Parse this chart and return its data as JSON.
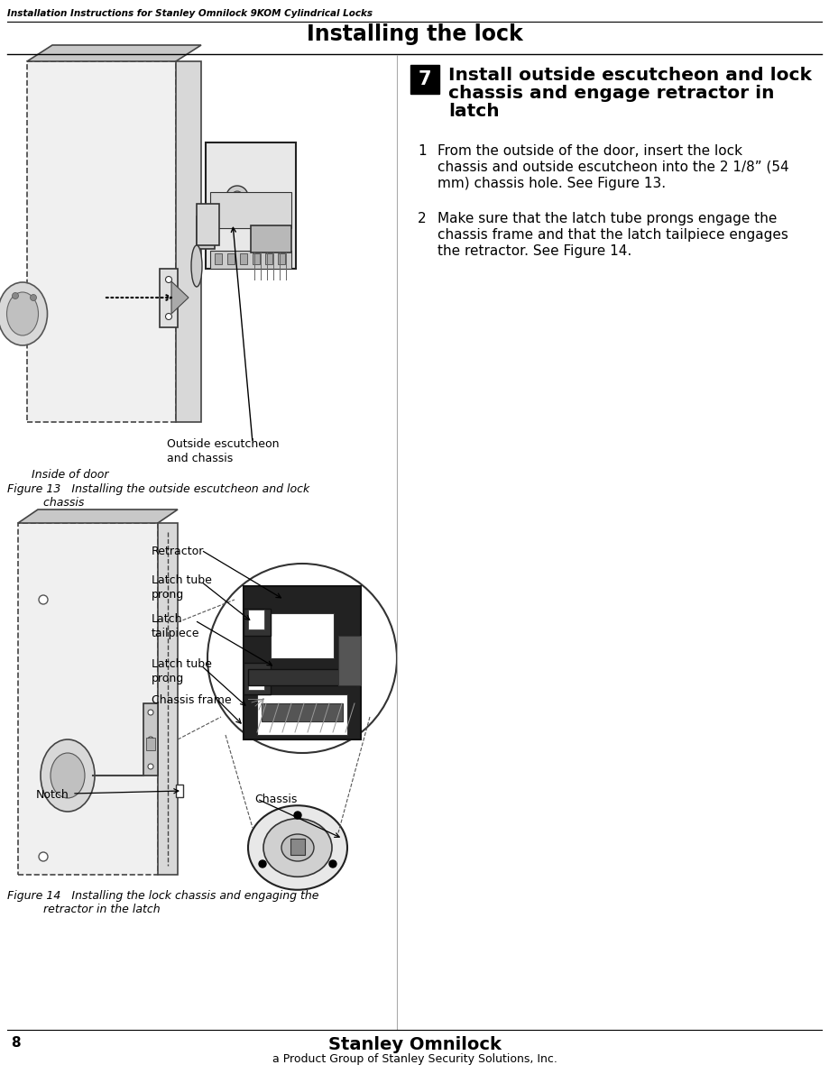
{
  "header_text": "Installation Instructions for Stanley Omnilock 9KOM Cylindrical Locks",
  "page_title": "Installing the lock",
  "step7_num": "7",
  "step7_title_lines": [
    "Install outside escutcheon and lock",
    "chassis and engage retractor in",
    "latch"
  ],
  "item1_num": "1",
  "item1_text_lines": [
    "From the outside of the door, insert the lock",
    "chassis and outside escutcheon into the 2 1/8” (54",
    "mm) chassis hole. See Figure 13."
  ],
  "item2_num": "2",
  "item2_text_lines": [
    "Make sure that the latch tube prongs engage the",
    "chassis frame and that the latch tailpiece engages",
    "the retractor. See Figure 14."
  ],
  "fig13_caption_line1": "Figure 13   Installing the outside escutcheon and lock",
  "fig13_caption_line2": "          chassis",
  "fig13_label_outside": "Outside escutcheon\nand chassis",
  "fig13_label_inside": "Inside of door",
  "fig14_label_retractor": "Retractor",
  "fig14_label_ltp1": "Latch tube\nprong",
  "fig14_label_tail": "Latch\ntailpiece",
  "fig14_label_ltp2": "Latch tube\nprong",
  "fig14_label_cf": "Chassis frame",
  "fig14_label_notch": "Notch",
  "fig14_label_chassis": "Chassis",
  "fig14_caption_line1": "Figure 14   Installing the lock chassis and engaging the",
  "fig14_caption_line2": "          retractor in the latch",
  "footer_page": "8",
  "footer_brand": "Stanley Omnilock",
  "footer_sub": "a Product Group of Stanley Security Solutions, Inc.",
  "bg": "#ffffff",
  "black": "#000000",
  "gray_light": "#e8e8e8",
  "gray_mid": "#bbbbbb",
  "gray_dark": "#888888",
  "gray_panel": "#d0d0d0",
  "gray_door": "#d4d4d4"
}
